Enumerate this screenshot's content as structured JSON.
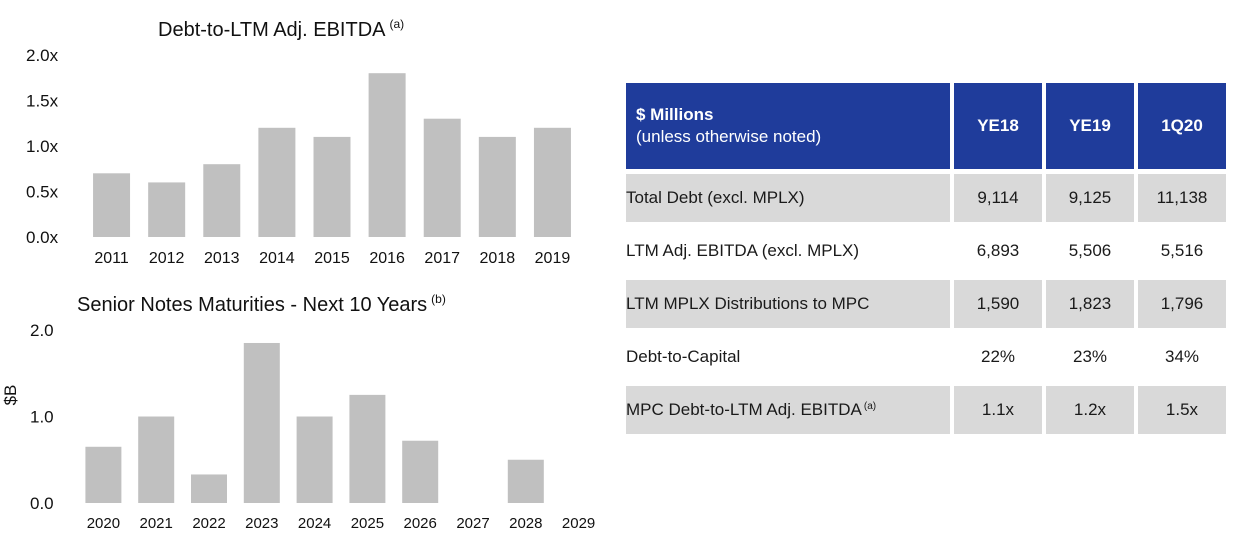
{
  "chart_data": [
    {
      "type": "bar",
      "title": "Debt-to-LTM Adj. EBITDA",
      "title_footnote": "(a)",
      "categories": [
        "2011",
        "2012",
        "2013",
        "2014",
        "2015",
        "2016",
        "2017",
        "2018",
        "2019"
      ],
      "values": [
        0.7,
        0.6,
        0.8,
        1.2,
        1.1,
        1.8,
        1.3,
        1.1,
        1.2
      ],
      "ylim": [
        0,
        2.0
      ],
      "yticks": [
        {
          "value": 0.0,
          "label": "0.0x"
        },
        {
          "value": 0.5,
          "label": "0.5x"
        },
        {
          "value": 1.0,
          "label": "1.0x"
        },
        {
          "value": 1.5,
          "label": "1.5x"
        },
        {
          "value": 2.0,
          "label": "2.0x"
        }
      ],
      "xlabel": "",
      "ylabel": "",
      "grid": false,
      "bar_color": "#c0c0c0"
    },
    {
      "type": "bar",
      "title": "Senior Notes Maturities - Next 10 Years",
      "title_footnote": "(b)",
      "categories": [
        "2020",
        "2021",
        "2022",
        "2023",
        "2024",
        "2025",
        "2026",
        "2027",
        "2028",
        "2029"
      ],
      "values": [
        0.65,
        1.0,
        0.33,
        1.85,
        1.0,
        1.25,
        0.72,
        0,
        0.5,
        0
      ],
      "ylim": [
        0,
        2.0
      ],
      "yticks": [
        {
          "value": 0.0,
          "label": "0.0"
        },
        {
          "value": 1.0,
          "label": "1.0"
        },
        {
          "value": 2.0,
          "label": "2.0"
        }
      ],
      "xlabel": "",
      "ylabel": "$B",
      "grid": false,
      "bar_color": "#c0c0c0"
    }
  ],
  "table": {
    "header": {
      "title": "$ Millions",
      "subtitle": "(unless otherwise noted)",
      "columns": [
        "YE18",
        "YE19",
        "1Q20"
      ]
    },
    "rows": [
      {
        "label": "Total Debt (excl. MPLX)",
        "values": [
          "9,114",
          "9,125",
          "11,138"
        ]
      },
      {
        "label": "LTM Adj. EBITDA (excl. MPLX)",
        "values": [
          "6,893",
          "5,506",
          "5,516"
        ]
      },
      {
        "label": "LTM MPLX Distributions to MPC",
        "values": [
          "1,590",
          "1,823",
          "1,796"
        ]
      },
      {
        "label": "Debt-to-Capital",
        "values": [
          "22%",
          "23%",
          "34%"
        ]
      },
      {
        "label": "MPC Debt-to-LTM Adj. EBITDA",
        "footnote": "(a)",
        "values": [
          "1.1x",
          "1.2x",
          "1.5x"
        ]
      }
    ],
    "header_color": "#1f3c9b",
    "shade_color": "#d9d9d9"
  }
}
